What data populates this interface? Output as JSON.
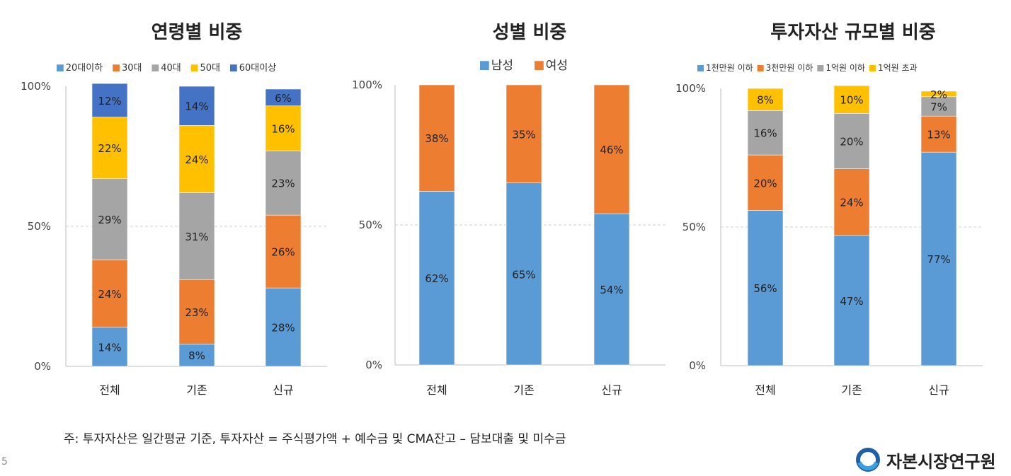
{
  "slide_number": "5",
  "footnote": "주: 투자자산은 일간평균 기준, 투자자산 = 주식평가액 + 예수금 및 CMA잔고 – 담보대출 및 미수금",
  "logo_text": "자본시장연구원",
  "chart_data": [
    {
      "type": "bar",
      "stacked": true,
      "title": "연령별 비중",
      "categories": [
        "전체",
        "기존",
        "신규"
      ],
      "y_ticks": [
        "0%",
        "50%",
        "100%"
      ],
      "ylim": [
        0,
        100
      ],
      "legend_position": "top",
      "series": [
        {
          "name": "20대이하",
          "color": "#5b9bd5",
          "values": [
            14,
            8,
            28
          ]
        },
        {
          "name": "30대",
          "color": "#ed7d31",
          "values": [
            24,
            23,
            26
          ]
        },
        {
          "name": "40대",
          "color": "#a5a5a5",
          "values": [
            29,
            31,
            23
          ]
        },
        {
          "name": "50대",
          "color": "#ffc000",
          "values": [
            22,
            24,
            16
          ]
        },
        {
          "name": "60대이상",
          "color": "#4472c4",
          "values": [
            12,
            14,
            6
          ]
        }
      ]
    },
    {
      "type": "bar",
      "stacked": true,
      "title": "성별 비중",
      "categories": [
        "전체",
        "기존",
        "신규"
      ],
      "y_ticks": [
        "0%",
        "50%",
        "100%"
      ],
      "ylim": [
        0,
        100
      ],
      "legend_position": "top",
      "series": [
        {
          "name": "남성",
          "color": "#5b9bd5",
          "values": [
            62,
            65,
            54
          ]
        },
        {
          "name": "여성",
          "color": "#ed7d31",
          "values": [
            38,
            35,
            46
          ]
        }
      ]
    },
    {
      "type": "bar",
      "stacked": true,
      "title": "투자자산 규모별 비중",
      "categories": [
        "전체",
        "기존",
        "신규"
      ],
      "y_ticks": [
        "0%",
        "50%",
        "100%"
      ],
      "ylim": [
        0,
        100
      ],
      "legend_position": "top",
      "series": [
        {
          "name": "1천만원 이하",
          "color": "#5b9bd5",
          "values": [
            56,
            47,
            77
          ]
        },
        {
          "name": "3천만원 이하",
          "color": "#ed7d31",
          "values": [
            20,
            24,
            13
          ]
        },
        {
          "name": "1억원 이하",
          "color": "#a5a5a5",
          "values": [
            16,
            20,
            7
          ]
        },
        {
          "name": "1억원 초과",
          "color": "#ffc000",
          "values": [
            8,
            10,
            2
          ]
        }
      ]
    }
  ]
}
